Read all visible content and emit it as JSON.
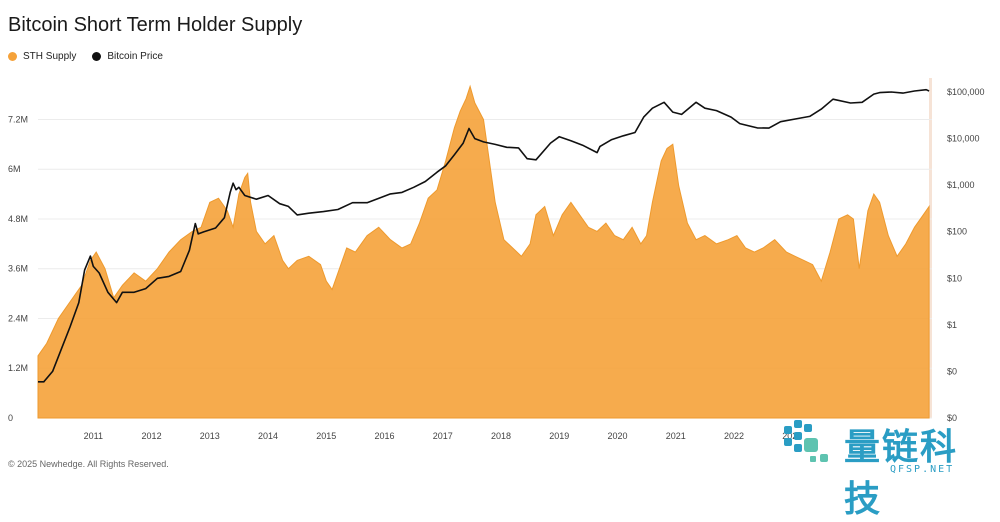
{
  "title": "Bitcoin Short Term Holder Supply",
  "footer": "© 2025 Newhedge. All Rights Reserved.",
  "watermark": {
    "text": "量链科技",
    "sub": "QFSP.NET"
  },
  "colors": {
    "supply": "#f5a23a",
    "price": "#111111"
  },
  "chart_data": {
    "type": "area",
    "title": "Bitcoin Short Term Holder Supply",
    "legend": [
      "STH Supply",
      "Bitcoin Price"
    ],
    "legend_position": "top-left",
    "x_ticks": [
      "2011",
      "2012",
      "2013",
      "2014",
      "2015",
      "2016",
      "2017",
      "2018",
      "2019",
      "2020",
      "2021",
      "2022",
      "2023"
    ],
    "y_left_ticks": [
      "0",
      "1.2M",
      "2.4M",
      "3.6M",
      "4.8M",
      "6M",
      "7.2M"
    ],
    "y_left_range": [
      0,
      8200000
    ],
    "y_right_ticks": [
      "$0",
      "$0",
      "$1",
      "$10",
      "$100",
      "$1,000",
      "$10,000",
      "$100,000"
    ],
    "y_right_log_range": [
      0.01,
      200000
    ],
    "x_range": [
      2010.55,
      2025.9
    ],
    "grid": "horizontal",
    "series": [
      {
        "name": "STH Supply",
        "type": "area",
        "x": [
          2010.55,
          2010.7,
          2010.9,
          2011.1,
          2011.3,
          2011.45,
          2011.55,
          2011.7,
          2011.85,
          2012.0,
          2012.2,
          2012.4,
          2012.6,
          2012.8,
          2013.0,
          2013.2,
          2013.35,
          2013.5,
          2013.65,
          2013.8,
          2013.9,
          2014.0,
          2014.1,
          2014.15,
          2014.2,
          2014.3,
          2014.45,
          2014.6,
          2014.75,
          2014.85,
          2015.0,
          2015.2,
          2015.4,
          2015.5,
          2015.6,
          2015.75,
          2015.85,
          2016.0,
          2016.2,
          2016.4,
          2016.6,
          2016.8,
          2016.95,
          2017.1,
          2017.25,
          2017.4,
          2017.55,
          2017.7,
          2017.8,
          2017.9,
          2017.97,
          2018.05,
          2018.2,
          2018.4,
          2018.55,
          2018.7,
          2018.85,
          2019.0,
          2019.1,
          2019.25,
          2019.4,
          2019.55,
          2019.7,
          2019.85,
          2020.0,
          2020.15,
          2020.3,
          2020.45,
          2020.6,
          2020.75,
          2020.9,
          2021.0,
          2021.1,
          2021.25,
          2021.35,
          2021.45,
          2021.55,
          2021.7,
          2021.85,
          2022.0,
          2022.2,
          2022.4,
          2022.55,
          2022.7,
          2022.85,
          2023.0,
          2023.2,
          2023.4,
          2023.55,
          2023.7,
          2023.85,
          2024.0,
          2024.15,
          2024.3,
          2024.45,
          2024.55,
          2024.65,
          2024.8,
          2024.9,
          2025.0,
          2025.15,
          2025.3,
          2025.45,
          2025.6,
          2025.75,
          2025.85
        ],
        "values": [
          1500000,
          1800000,
          2400000,
          2800000,
          3200000,
          3800000,
          4000000,
          3600000,
          2900000,
          3200000,
          3500000,
          3300000,
          3600000,
          4000000,
          4300000,
          4500000,
          4600000,
          5200000,
          5300000,
          5000000,
          4600000,
          5400000,
          5800000,
          5900000,
          5200000,
          4500000,
          4200000,
          4400000,
          3800000,
          3600000,
          3800000,
          3900000,
          3700000,
          3300000,
          3100000,
          3700000,
          4100000,
          4000000,
          4400000,
          4600000,
          4300000,
          4100000,
          4200000,
          4700000,
          5300000,
          5500000,
          6200000,
          7000000,
          7400000,
          7700000,
          8000000,
          7600000,
          7200000,
          5200000,
          4300000,
          4100000,
          3900000,
          4200000,
          4900000,
          5100000,
          4400000,
          4900000,
          5200000,
          4900000,
          4600000,
          4500000,
          4700000,
          4400000,
          4300000,
          4600000,
          4200000,
          4400000,
          5200000,
          6200000,
          6500000,
          6600000,
          5600000,
          4700000,
          4300000,
          4400000,
          4200000,
          4300000,
          4400000,
          4100000,
          4000000,
          4100000,
          4300000,
          4000000,
          3900000,
          3800000,
          3700000,
          3300000,
          4000000,
          4800000,
          4900000,
          4800000,
          3600000,
          5000000,
          5400000,
          5200000,
          4400000,
          3900000,
          4200000,
          4600000,
          4900000,
          5100000
        ]
      },
      {
        "name": "Bitcoin Price",
        "type": "line",
        "x": [
          2010.55,
          2010.65,
          2010.8,
          2010.95,
          2011.1,
          2011.25,
          2011.35,
          2011.45,
          2011.5,
          2011.6,
          2011.75,
          2011.9,
          2012.0,
          2012.2,
          2012.4,
          2012.6,
          2012.8,
          2013.0,
          2013.15,
          2013.25,
          2013.3,
          2013.4,
          2013.6,
          2013.75,
          2013.85,
          2013.9,
          2013.95,
          2014.0,
          2014.1,
          2014.3,
          2014.5,
          2014.7,
          2014.85,
          2015.0,
          2015.2,
          2015.45,
          2015.7,
          2015.95,
          2016.2,
          2016.45,
          2016.6,
          2016.8,
          2017.0,
          2017.2,
          2017.4,
          2017.55,
          2017.7,
          2017.85,
          2017.95,
          2018.05,
          2018.2,
          2018.4,
          2018.6,
          2018.8,
          2018.95,
          2019.1,
          2019.35,
          2019.5,
          2019.7,
          2019.9,
          2020.15,
          2020.2,
          2020.4,
          2020.6,
          2020.8,
          2020.95,
          2021.1,
          2021.3,
          2021.45,
          2021.6,
          2021.85,
          2022.0,
          2022.2,
          2022.45,
          2022.6,
          2022.9,
          2023.1,
          2023.3,
          2023.6,
          2023.8,
          2024.0,
          2024.2,
          2024.5,
          2024.7,
          2024.9,
          2025.0,
          2025.2,
          2025.4,
          2025.6,
          2025.8,
          2025.85
        ],
        "values": [
          0.06,
          0.06,
          0.1,
          0.3,
          0.9,
          3,
          15,
          30,
          18,
          13,
          5,
          3,
          5,
          5,
          6,
          10,
          11,
          14,
          40,
          150,
          90,
          100,
          120,
          200,
          700,
          1100,
          800,
          900,
          600,
          500,
          600,
          400,
          350,
          230,
          250,
          270,
          300,
          420,
          420,
          550,
          650,
          700,
          900,
          1200,
          1900,
          2600,
          4500,
          8000,
          16500,
          10000,
          8500,
          7500,
          6500,
          6300,
          3700,
          3500,
          8000,
          11000,
          9000,
          7200,
          5000,
          6800,
          9500,
          11500,
          13500,
          29000,
          45000,
          60000,
          37000,
          33000,
          60000,
          45000,
          40000,
          29000,
          21000,
          17000,
          16800,
          23000,
          27000,
          30000,
          43000,
          70000,
          58000,
          60000,
          90000,
          97000,
          100000,
          95000,
          105000,
          112000,
          105000
        ]
      }
    ]
  }
}
